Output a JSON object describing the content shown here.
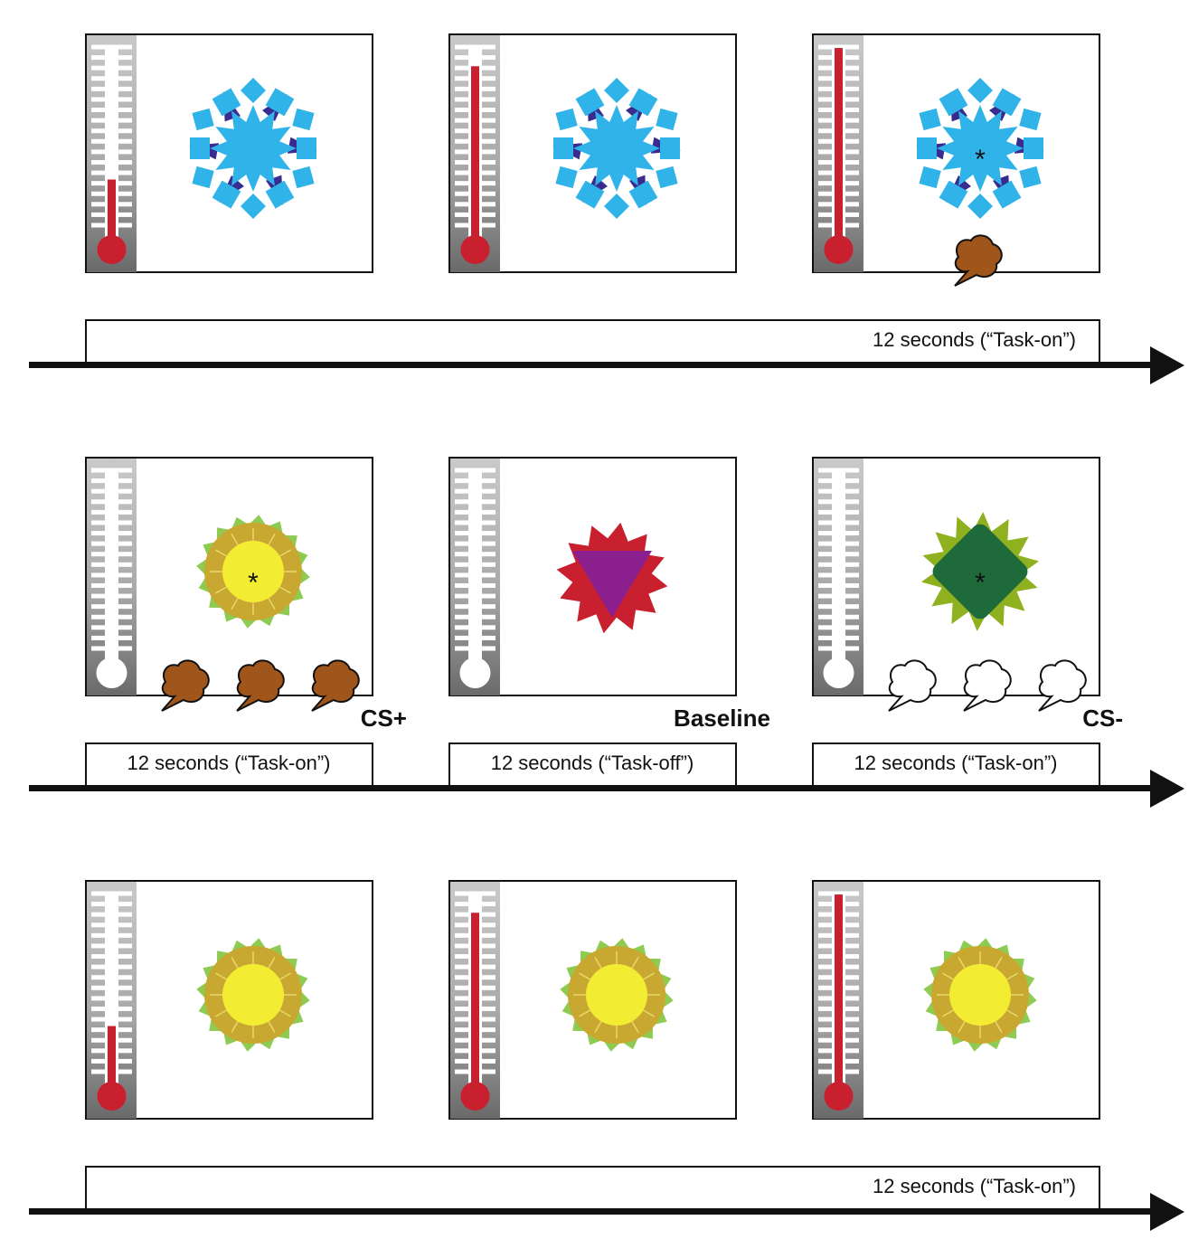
{
  "rows": [
    {
      "timeline": "12 seconds (“Task-on”)"
    },
    {
      "segments": [
        "12 seconds (“Task-on”)",
        "12 seconds (“Task-off”)",
        "12 seconds (“Task-on”)"
      ],
      "labels": [
        "CS+",
        "Baseline",
        "CS-"
      ]
    },
    {
      "timeline": "12 seconds (“Task-on”)"
    }
  ],
  "asterisk": "*",
  "panels": [
    {
      "stimulus": "snowflake",
      "thermometer_level": 0.25,
      "marker": false,
      "bubbles": 0
    },
    {
      "stimulus": "snowflake",
      "thermometer_level": 0.87,
      "marker": false,
      "bubbles": 0
    },
    {
      "stimulus": "snowflake",
      "thermometer_level": 0.97,
      "marker": true,
      "bubbles": 1,
      "bubble_style": "filled"
    },
    {
      "stimulus": "sun",
      "thermometer_level": 0.0,
      "marker": true,
      "bubbles": 3,
      "bubble_style": "filled"
    },
    {
      "stimulus": "red-triangle",
      "thermometer_level": 0.0,
      "marker": false,
      "bubbles": 0
    },
    {
      "stimulus": "green-diamond",
      "thermometer_level": 0.0,
      "marker": true,
      "bubbles": 3,
      "bubble_style": "outline"
    },
    {
      "stimulus": "sun",
      "thermometer_level": 0.25,
      "marker": false,
      "bubbles": 0
    },
    {
      "stimulus": "sun",
      "thermometer_level": 0.87,
      "marker": false,
      "bubbles": 0
    },
    {
      "stimulus": "sun",
      "thermometer_level": 0.97,
      "marker": false,
      "bubbles": 0
    }
  ],
  "colors": {
    "mercury": "#c8202e",
    "snow_light": "#2fb3e8",
    "snow_dark": "#3a2c8e",
    "sun_core": "#f2ec33",
    "sun_ring": "#c9a832",
    "sun_petal": "#8ecb52",
    "red_star": "#c8202e",
    "triangle": "#8b1f8e",
    "diamond": "#1f6a3a",
    "leaf": "#8fb01f",
    "bubble": "#a0561a"
  }
}
